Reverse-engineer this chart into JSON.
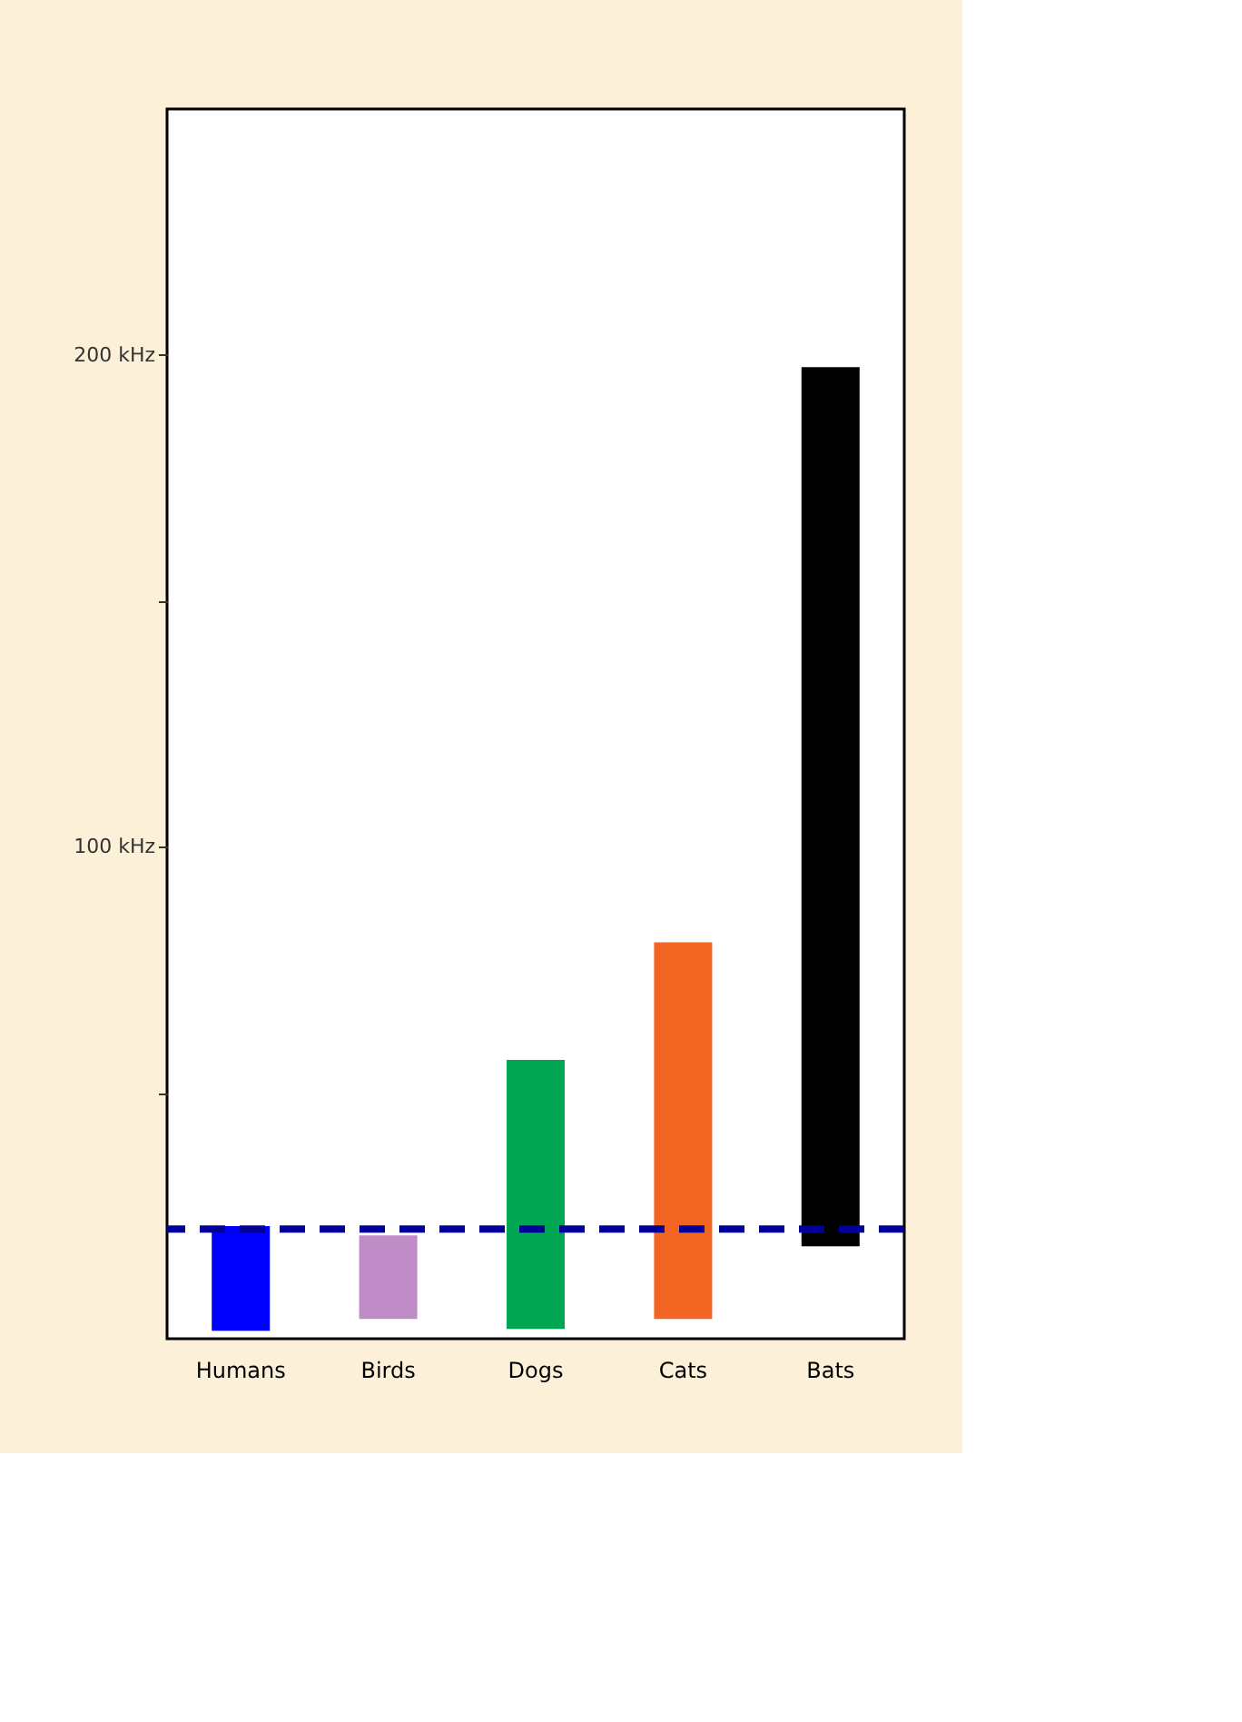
{
  "chart_data": {
    "type": "bar",
    "categories": [
      "Humans",
      "Birds",
      "Dogs",
      "Cats",
      "Bats"
    ],
    "base": [
      1.6,
      4,
      2,
      4,
      18.8
    ],
    "values": [
      21.3,
      17,
      54.7,
      76.6,
      178.7
    ],
    "colors": [
      "#0000ff",
      "#c08cc8",
      "#00a651",
      "#f26522",
      "#000000"
    ],
    "ylim": [
      0,
      250
    ],
    "yticks": [
      {
        "value": 50,
        "label": null
      },
      {
        "value": 100,
        "label": "100 kHz"
      },
      {
        "value": 150,
        "label": null
      },
      {
        "value": 200,
        "label": "200 kHz"
      }
    ],
    "ref_lines": [
      {
        "axis": "y",
        "value": 22.3,
        "color": "#000099",
        "line_style": "dashed"
      }
    ],
    "grid": false
  }
}
